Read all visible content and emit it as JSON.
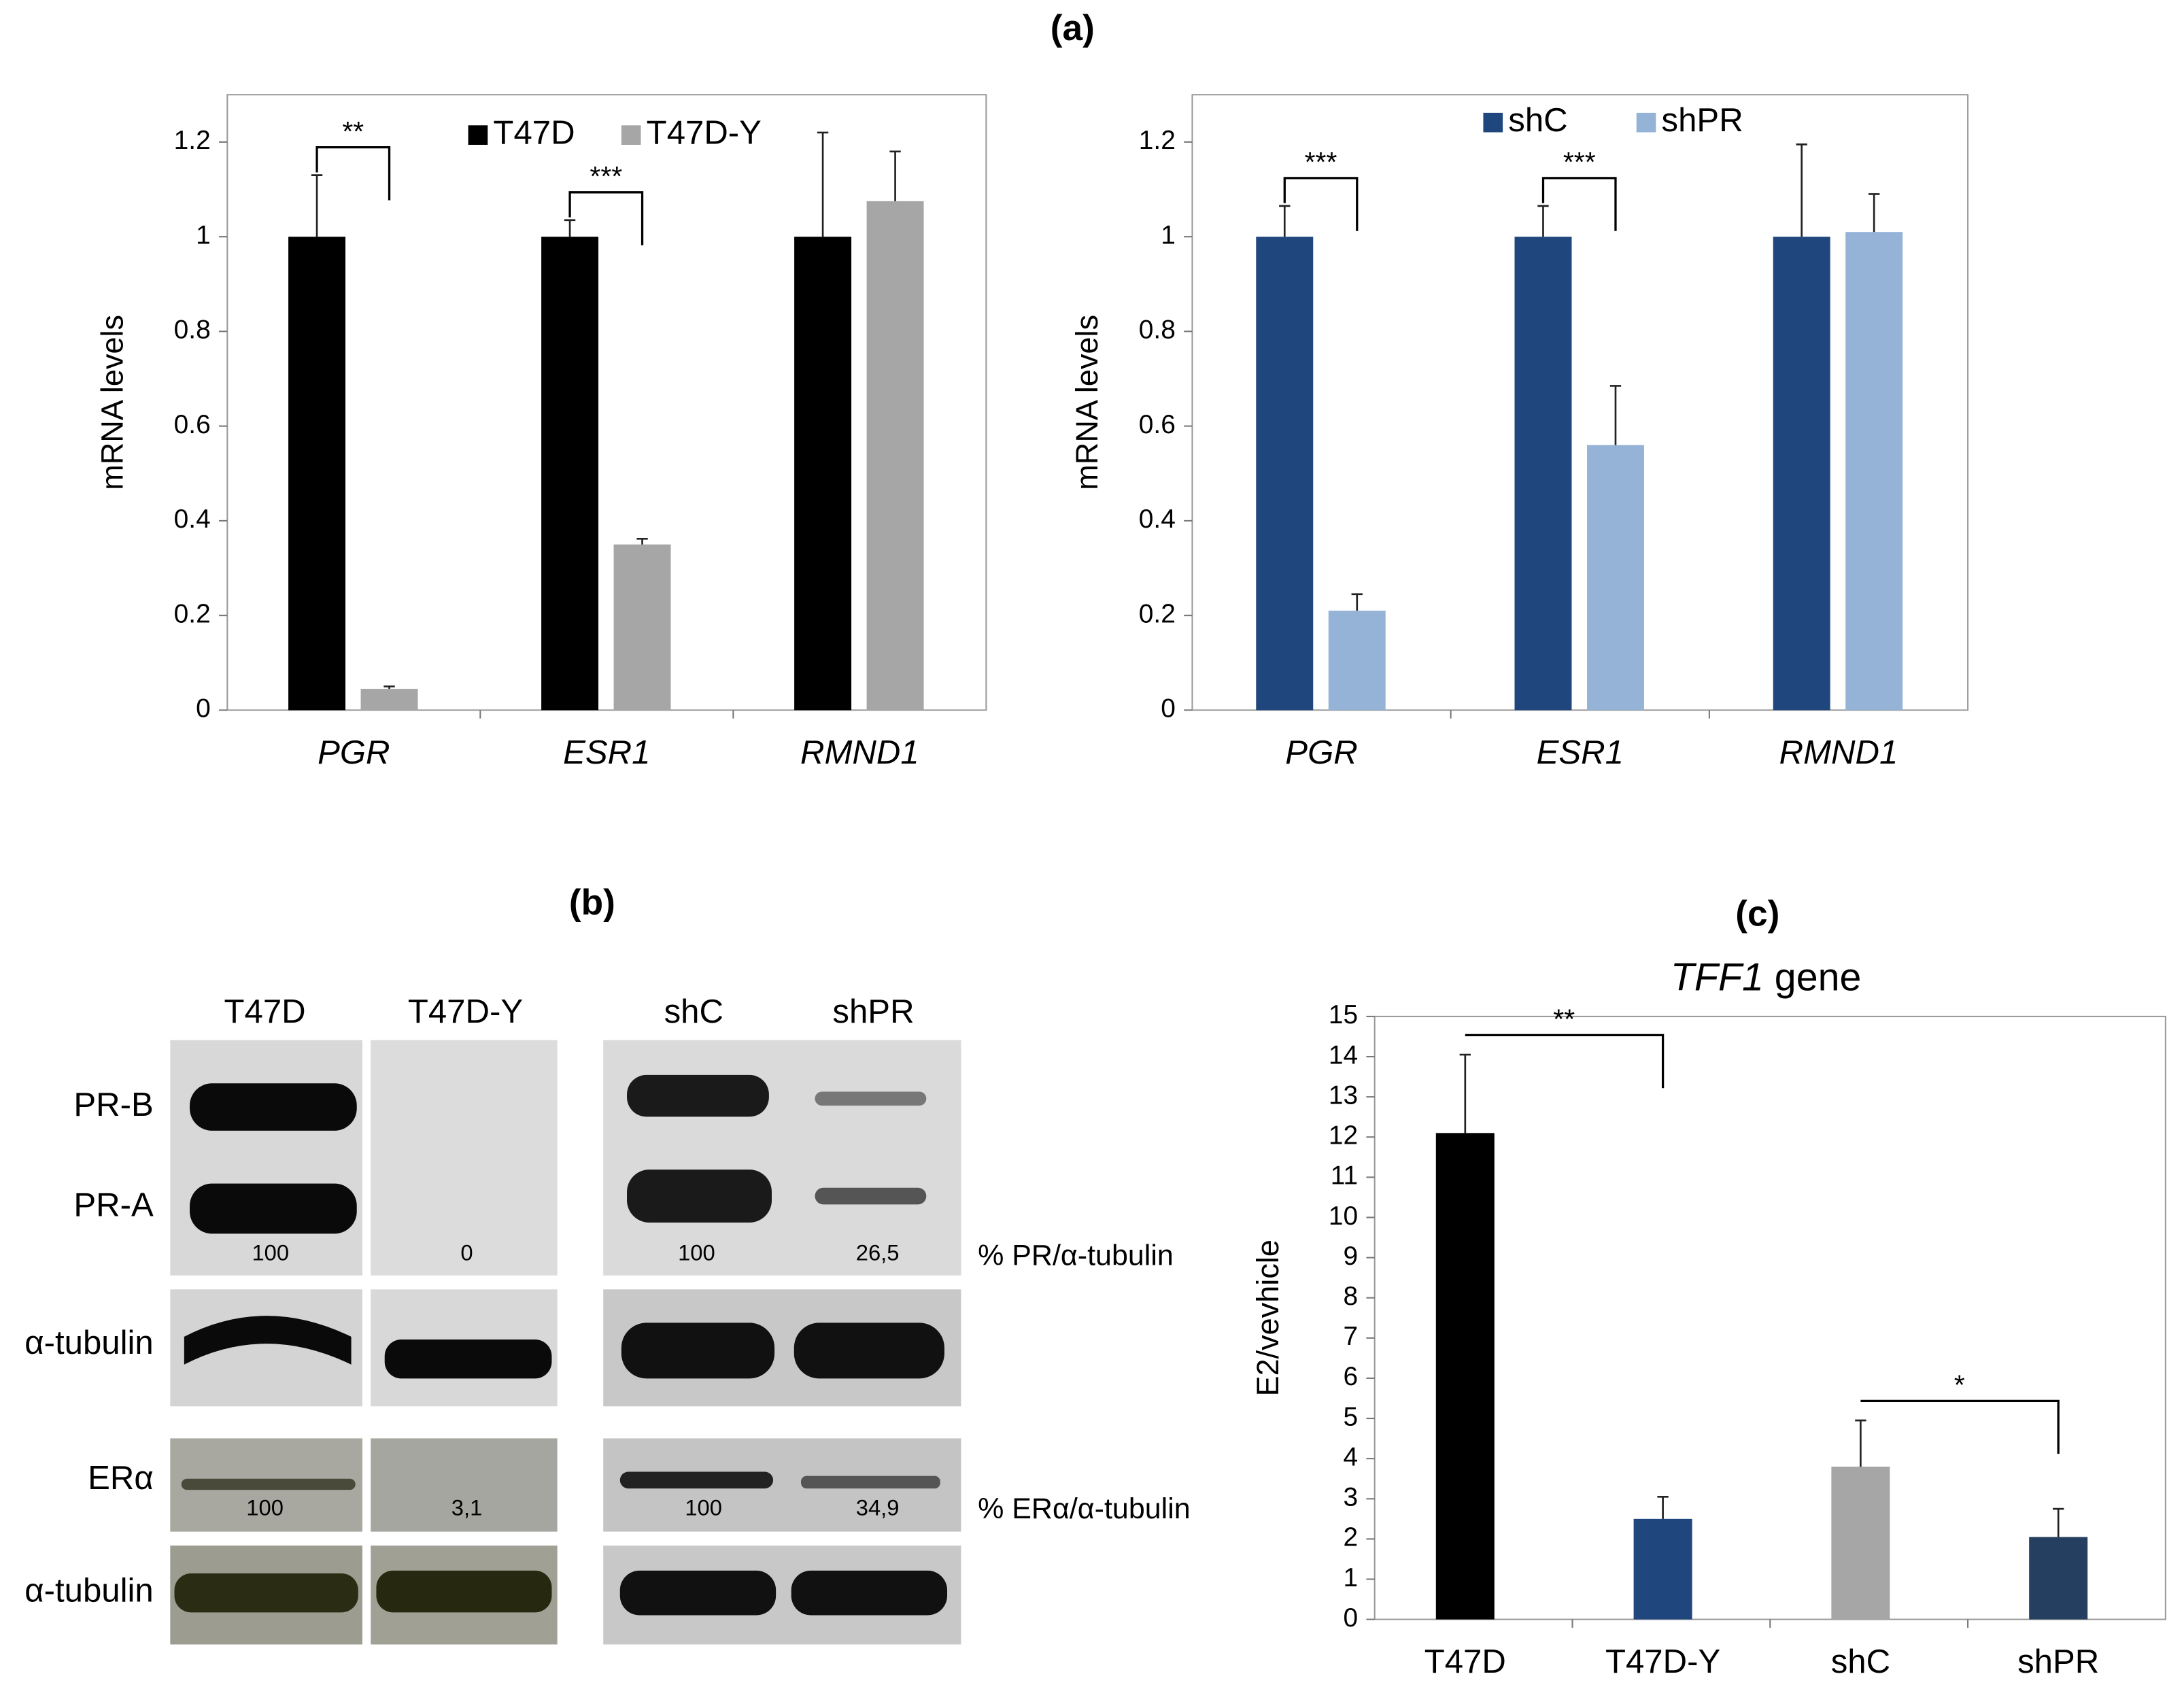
{
  "figure_labels": [
    "(a)",
    "(b)",
    "(c)"
  ],
  "chart_data": [
    {
      "type": "bar",
      "y_label": "mRNA levels",
      "categories": [
        "PGR",
        "ESR1",
        "RMND1"
      ],
      "series": [
        {
          "name": "T47D",
          "color": "#000000",
          "values": [
            1,
            1,
            1
          ],
          "errors": [
            0.13,
            0.035,
            0.22
          ]
        },
        {
          "name": "T47D-Y",
          "color": "#a6a6a6",
          "values": [
            0.045,
            0.35,
            1.075
          ],
          "errors": [
            0.005,
            0.012,
            0.105
          ]
        }
      ],
      "ylim": [
        0,
        1.3
      ],
      "yticks": [
        0,
        0.2,
        0.4,
        0.6,
        0.8,
        1,
        1.2
      ],
      "significance": [
        {
          "category": 0,
          "label": "**"
        },
        {
          "category": 1,
          "label": "***"
        }
      ]
    },
    {
      "type": "bar",
      "y_label": "mRNA levels",
      "categories": [
        "PGR",
        "ESR1",
        "RMND1"
      ],
      "series": [
        {
          "name": "shC",
          "color": "#1f477d",
          "values": [
            1,
            1,
            1
          ],
          "errors": [
            0.065,
            0.065,
            0.195
          ]
        },
        {
          "name": "shPR",
          "color": "#95b3d7",
          "values": [
            0.21,
            0.56,
            1.01
          ],
          "errors": [
            0.035,
            0.125,
            0.08
          ]
        }
      ],
      "ylim": [
        0,
        1.3
      ],
      "yticks": [
        0,
        0.2,
        0.4,
        0.6,
        0.8,
        1,
        1.2
      ],
      "significance": [
        {
          "category": 0,
          "label": "***"
        },
        {
          "category": 1,
          "label": "***"
        }
      ]
    },
    {
      "type": "singlebar",
      "title_gene": "TFF1",
      "title_rest": "gene",
      "y_label": "E2/vevhicle",
      "categories": [
        "T47D",
        "T47D-Y",
        "shC",
        "shPR"
      ],
      "values": [
        12.1,
        2.5,
        3.8,
        2.05
      ],
      "errors": [
        1.95,
        0.55,
        1.15,
        0.7
      ],
      "colors": [
        "#000000",
        "#1f477d",
        "#a6a6a6",
        "#243f60"
      ],
      "ylim": [
        0,
        15
      ],
      "yticks": [
        0,
        1,
        2,
        3,
        4,
        5,
        6,
        7,
        8,
        9,
        10,
        11,
        12,
        13,
        14,
        15
      ],
      "significance": [
        {
          "from": 0,
          "to": 1,
          "label": "**"
        },
        {
          "from": 2,
          "to": 3,
          "label": "*"
        }
      ]
    }
  ],
  "blot": {
    "columns": [
      "T47D",
      "T47D-Y",
      "shC",
      "shPR"
    ],
    "rows": [
      "PR-B",
      "PR-A",
      "α-tubulin",
      "ERα",
      "α-tubulin"
    ],
    "pr_quant": [
      "100",
      "0",
      "100",
      "26,5"
    ],
    "er_quant": [
      "100",
      "3,1",
      "100",
      "34,9"
    ],
    "pr_label": "% PR/α-tubulin",
    "er_label": "% ERα/α-tubulin"
  }
}
